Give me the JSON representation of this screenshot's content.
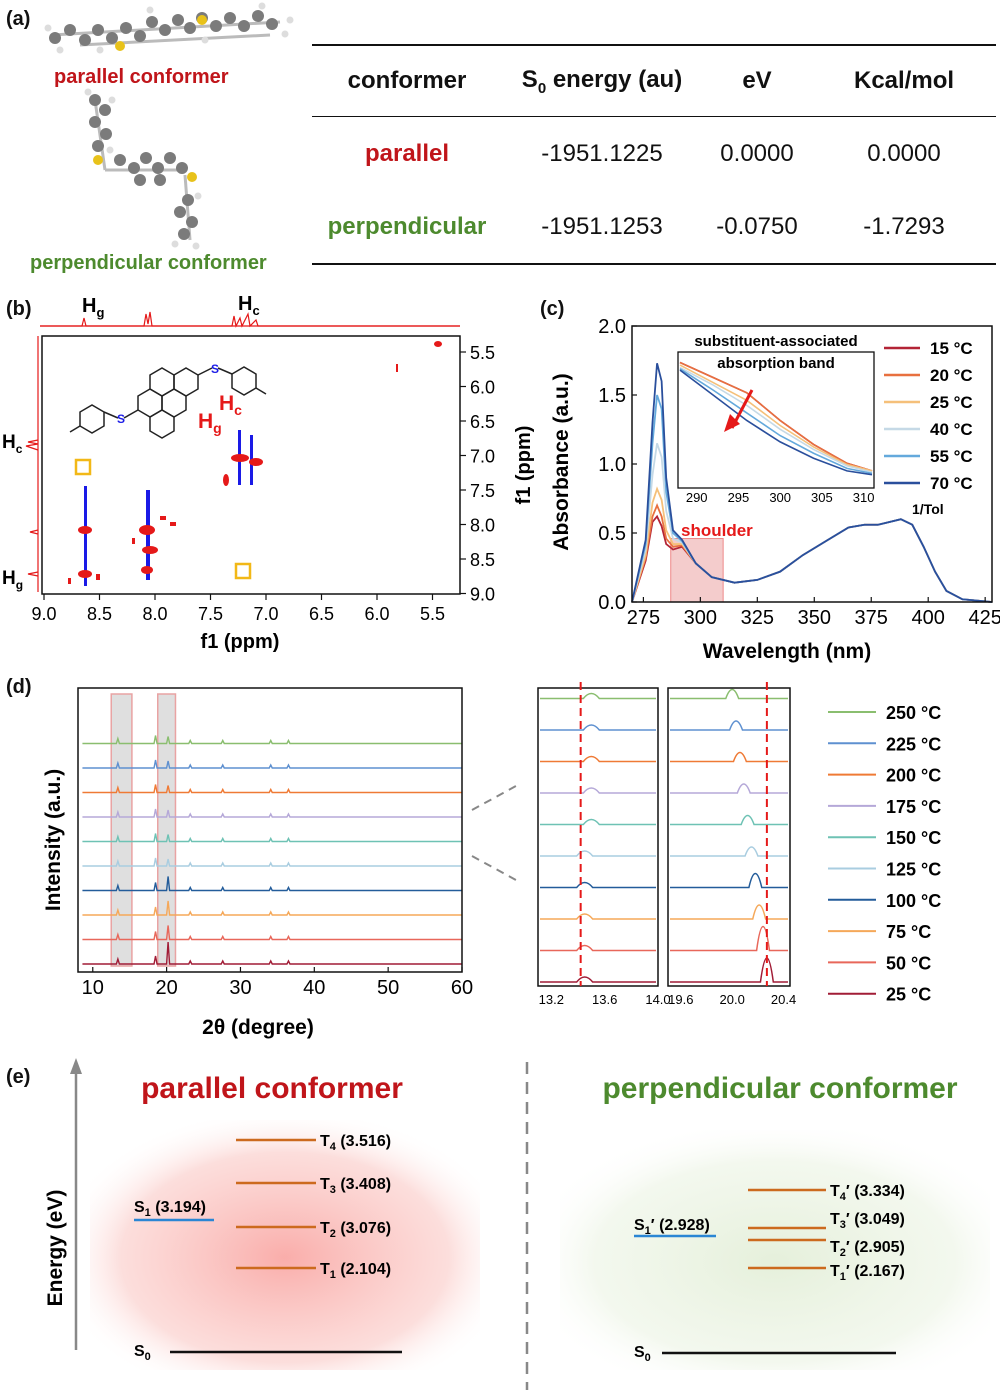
{
  "colors": {
    "red_label": "#c0151a",
    "green_label": "#4d8a2e",
    "singlet": "#2a86d4",
    "triplet": "#cc6a1e",
    "nmr_red": "#e51919",
    "nmr_blue": "#1a1ae6",
    "highlight_box": "#f2b817",
    "shoulder_fill": "#ff9c9c"
  },
  "panel_a": {
    "label": "(a)",
    "parallel_caption": "parallel conformer",
    "perpendicular_caption": "perpendicular conformer",
    "table": {
      "headers": [
        "conformer",
        "S0 energy (au)",
        "eV",
        "Kcal/mol"
      ],
      "rows": [
        {
          "conformer": "parallel",
          "energy": "-1951.1225",
          "ev": "0.0000",
          "kcal": "0.0000"
        },
        {
          "conformer": "perpendicular",
          "energy": "-1951.1253",
          "ev": "-0.0750",
          "kcal": "-1.7293"
        }
      ]
    }
  },
  "panel_b": {
    "label": "(b)",
    "top_labels": [
      "Hg",
      "Hc"
    ],
    "left_labels": [
      "Hc",
      "Hg"
    ],
    "structure_labels": [
      "Hc",
      "Hg",
      "S"
    ],
    "x_ticks": [
      "9.0",
      "8.5",
      "8.0",
      "7.5",
      "7.0",
      "6.5",
      "6.0",
      "5.5"
    ],
    "y_ticks": [
      "5.5",
      "6.0",
      "6.5",
      "7.0",
      "7.5",
      "8.0",
      "8.5",
      "9.0"
    ],
    "x_label": "f1 (ppm)",
    "y_label": "f1 (ppm)"
  },
  "panel_c": {
    "label": "(c)",
    "x_label": "Wavelength (nm)",
    "y_label": "Absorbance (a.u.)",
    "x_ticks": [
      "275",
      "300",
      "325",
      "350",
      "375",
      "400",
      "425"
    ],
    "y_ticks": [
      "0.0",
      "0.5",
      "1.0",
      "1.5",
      "2.0"
    ],
    "shoulder_label": "shoulder",
    "inset_title": "substituent-associated absorption band",
    "inset_x_ticks": [
      "290",
      "295",
      "300",
      "305",
      "310"
    ],
    "legend": [
      "15 °C",
      "20 °C",
      "25 °C",
      "40 °C",
      "55 °C",
      "70 °C"
    ],
    "legend_colors": [
      "#b32436",
      "#e8703f",
      "#f5c07a",
      "#c5d9e6",
      "#64a9dc",
      "#2a4f9c"
    ],
    "legend_footer": "1/Tol"
  },
  "chart_data": [
    {
      "type": "line",
      "title": "",
      "xlabel": "Wavelength (nm)",
      "ylabel": "Absorbance (a.u.)",
      "xlim": [
        270,
        428
      ],
      "ylim": [
        0,
        2.0
      ],
      "x": [
        270,
        276,
        279,
        281,
        283,
        285,
        288,
        292,
        298,
        305,
        315,
        325,
        335,
        345,
        355,
        365,
        372,
        378,
        383,
        388,
        393,
        398,
        403,
        408,
        415,
        428
      ],
      "series": [
        {
          "name": "15 °C",
          "values": [
            0.0,
            0.3,
            0.58,
            0.62,
            0.55,
            0.42,
            0.38,
            0.4,
            0.28,
            0.18,
            0.14,
            0.16,
            0.22,
            0.34,
            0.44,
            0.54,
            0.56,
            0.56,
            0.58,
            0.6,
            0.56,
            0.4,
            0.22,
            0.08,
            0.02,
            0.0
          ]
        },
        {
          "name": "20 °C",
          "values": [
            0.0,
            0.32,
            0.62,
            0.7,
            0.62,
            0.46,
            0.4,
            0.41,
            0.28,
            0.18,
            0.14,
            0.16,
            0.22,
            0.34,
            0.44,
            0.54,
            0.56,
            0.56,
            0.58,
            0.6,
            0.56,
            0.4,
            0.22,
            0.08,
            0.02,
            0.0
          ]
        },
        {
          "name": "25 °C",
          "values": [
            0.0,
            0.34,
            0.72,
            0.82,
            0.74,
            0.52,
            0.42,
            0.42,
            0.28,
            0.18,
            0.14,
            0.16,
            0.22,
            0.34,
            0.44,
            0.54,
            0.56,
            0.56,
            0.58,
            0.6,
            0.56,
            0.4,
            0.22,
            0.08,
            0.02,
            0.0
          ]
        },
        {
          "name": "40 °C",
          "values": [
            0.0,
            0.38,
            0.92,
            1.15,
            1.05,
            0.66,
            0.46,
            0.43,
            0.28,
            0.18,
            0.14,
            0.16,
            0.22,
            0.34,
            0.44,
            0.54,
            0.56,
            0.56,
            0.58,
            0.6,
            0.56,
            0.4,
            0.22,
            0.08,
            0.02,
            0.0
          ]
        },
        {
          "name": "55 °C",
          "values": [
            0.0,
            0.42,
            1.15,
            1.5,
            1.4,
            0.8,
            0.5,
            0.44,
            0.28,
            0.18,
            0.14,
            0.16,
            0.22,
            0.34,
            0.44,
            0.54,
            0.56,
            0.56,
            0.58,
            0.6,
            0.56,
            0.4,
            0.22,
            0.08,
            0.02,
            0.0
          ]
        },
        {
          "name": "70 °C",
          "values": [
            0.0,
            0.45,
            1.3,
            1.73,
            1.6,
            0.9,
            0.52,
            0.45,
            0.28,
            0.18,
            0.14,
            0.16,
            0.22,
            0.34,
            0.44,
            0.54,
            0.56,
            0.56,
            0.58,
            0.6,
            0.56,
            0.4,
            0.22,
            0.08,
            0.02,
            0.0
          ]
        }
      ]
    },
    {
      "type": "line",
      "title": "",
      "xlabel": "2θ (degree)",
      "ylabel": "Intensity (a.u.)",
      "xlim": [
        8,
        60
      ],
      "peaks_deg": [
        13.4,
        18.5,
        20.2,
        23.2,
        27.6,
        34.1,
        36.5
      ],
      "series_names": [
        "25 °C",
        "50 °C",
        "75 °C",
        "100 °C",
        "125 °C",
        "150 °C",
        "175 °C",
        "200 °C",
        "225 °C",
        "250 °C"
      ],
      "series_colors": [
        "#a11c36",
        "#e8675a",
        "#f5a859",
        "#235c9a",
        "#a9cde0",
        "#6ec2b4",
        "#b5a8d8",
        "#ef7a35",
        "#5e90d0",
        "#8abe6f"
      ],
      "x_ticks": [
        "10",
        "20",
        "30",
        "40",
        "50",
        "60"
      ]
    }
  ],
  "panel_d": {
    "label": "(d)",
    "x_label": "2θ (degree)",
    "y_label": "Intensity (a.u.)",
    "x_ticks": [
      "10",
      "20",
      "30",
      "40",
      "50",
      "60"
    ],
    "zoom1_ticks": [
      "13.2",
      "13.6",
      "14.0"
    ],
    "zoom2_ticks": [
      "19.6",
      "20.0",
      "20.4"
    ],
    "legend": [
      "250 °C",
      "225 °C",
      "200 °C",
      "175 °C",
      "150 °C",
      "125 °C",
      "100 °C",
      "75 °C",
      "50 °C",
      "25 °C"
    ]
  },
  "panel_e": {
    "label": "(e)",
    "y_label": "Energy (eV)",
    "parallel": {
      "title": "parallel conformer",
      "s1": "S1 (3.194)",
      "t_levels": [
        "T4 (3.516)",
        "T3 (3.408)",
        "T2 (3.076)",
        "T1 (2.104)"
      ],
      "s0": "S0"
    },
    "perpendicular": {
      "title": "perpendicular conformer",
      "s1": "S1′ (2.928)",
      "t_levels": [
        "T4′ (3.334)",
        "T3′ (3.049)",
        "T2′ (2.905)",
        "T1′ (2.167)"
      ],
      "s0": "S0"
    }
  }
}
